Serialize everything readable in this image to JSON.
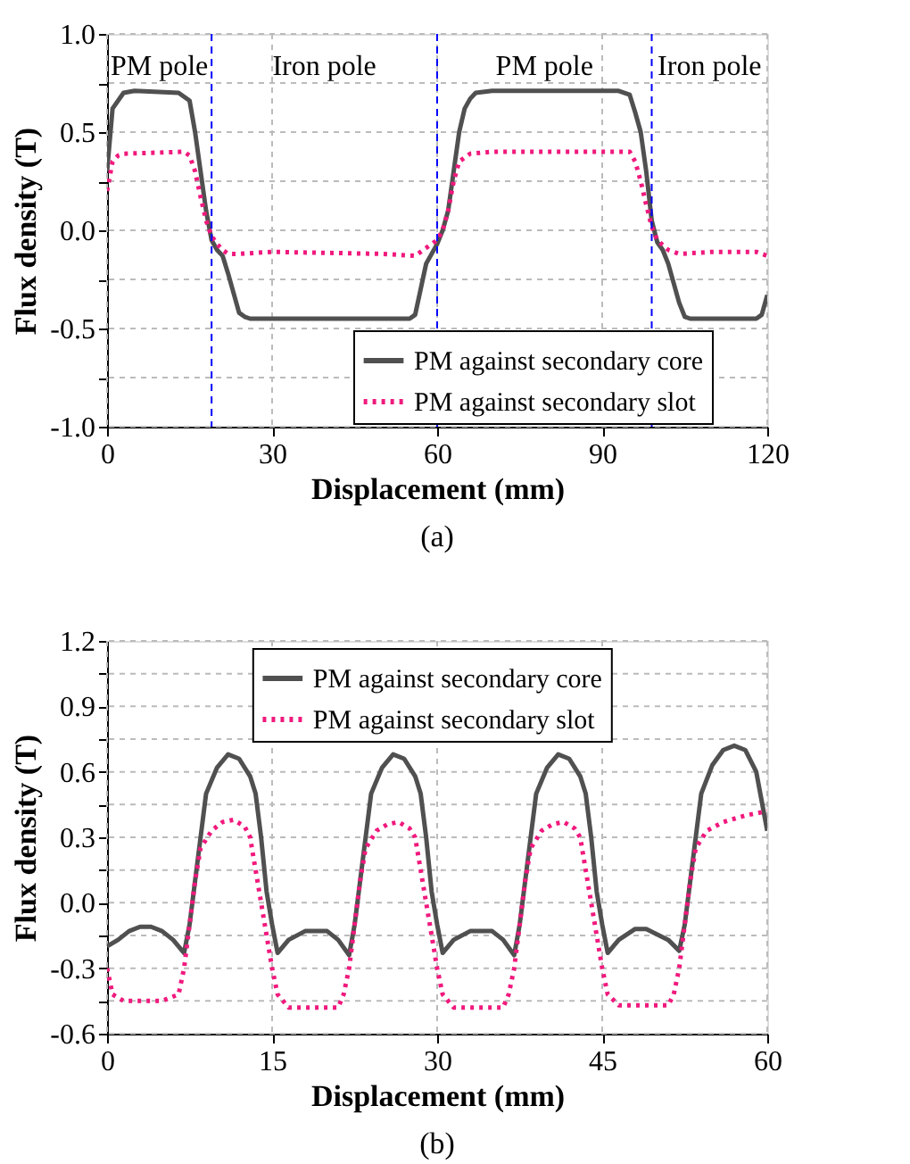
{
  "chart_data": [
    {
      "type": "line",
      "xlabel": "Displacement (mm)",
      "ylabel": "Flux density (T)",
      "xlim": [
        0,
        120
      ],
      "xticks": [
        0,
        30,
        60,
        90,
        120
      ],
      "ylim": [
        -1.0,
        1.0
      ],
      "yticks": [
        {
          "value": -1.0,
          "label": "-1.0"
        },
        {
          "value": -0.75,
          "label": null
        },
        {
          "value": -0.5,
          "label": "-0.5"
        },
        {
          "value": -0.25,
          "label": null
        },
        {
          "value": 0.0,
          "label": "0.0"
        },
        {
          "value": 0.25,
          "label": null
        },
        {
          "value": 0.5,
          "label": "0.5"
        },
        {
          "value": 0.75,
          "label": null
        },
        {
          "value": 1.0,
          "label": "1.0"
        }
      ],
      "grid": true,
      "legend": "bottom right",
      "series": [
        {
          "name": "PM against secondary core",
          "color": "#505050",
          "line_style": "solid",
          "x": [
            0,
            1,
            3,
            5,
            13,
            15,
            16,
            17,
            18,
            19,
            20,
            21,
            22,
            23,
            24,
            25,
            26,
            55,
            56,
            57,
            58,
            59,
            60,
            61,
            62,
            63,
            64,
            65,
            66,
            67,
            70,
            93,
            95,
            96,
            97,
            98,
            99,
            100,
            101,
            102,
            103,
            104,
            105,
            106,
            118,
            119,
            120
          ],
          "values": [
            0.3,
            0.62,
            0.7,
            0.71,
            0.7,
            0.66,
            0.5,
            0.3,
            0.1,
            -0.05,
            -0.1,
            -0.13,
            -0.22,
            -0.32,
            -0.42,
            -0.44,
            -0.45,
            -0.45,
            -0.43,
            -0.3,
            -0.17,
            -0.12,
            -0.07,
            0.0,
            0.1,
            0.3,
            0.5,
            0.62,
            0.67,
            0.7,
            0.71,
            0.71,
            0.69,
            0.6,
            0.5,
            0.3,
            0.05,
            -0.06,
            -0.1,
            -0.17,
            -0.27,
            -0.37,
            -0.44,
            -0.45,
            -0.45,
            -0.43,
            -0.33
          ]
        },
        {
          "name": "PM against secondary slot",
          "color": "#f0197d",
          "line_style": "dotted",
          "x": [
            0,
            1,
            2,
            3,
            14,
            15,
            16,
            17,
            18,
            19,
            20,
            21,
            22,
            24,
            30,
            50,
            56,
            58,
            60,
            61,
            62,
            63,
            64,
            66,
            70,
            95,
            96,
            97,
            98,
            99,
            100,
            102,
            104,
            110,
            118,
            120
          ],
          "values": [
            0.2,
            0.35,
            0.38,
            0.39,
            0.4,
            0.38,
            0.3,
            0.17,
            0.05,
            -0.03,
            -0.07,
            -0.1,
            -0.12,
            -0.12,
            -0.11,
            -0.12,
            -0.13,
            -0.09,
            -0.05,
            0.0,
            0.1,
            0.25,
            0.35,
            0.39,
            0.4,
            0.4,
            0.35,
            0.25,
            0.13,
            0.02,
            -0.05,
            -0.1,
            -0.12,
            -0.11,
            -0.11,
            -0.13
          ]
        }
      ],
      "ref_lines": [
        {
          "axis": "x",
          "value": 19,
          "color": "#0000ff",
          "line_style": "dashed"
        },
        {
          "axis": "x",
          "value": 60,
          "color": "#0000ff",
          "line_style": "dashed"
        },
        {
          "axis": "x",
          "value": 99,
          "color": "#0000ff",
          "line_style": "dashed"
        }
      ],
      "annotations": [
        "PM pole",
        "Iron pole",
        "PM pole",
        "Iron pole",
        "(a)"
      ]
    },
    {
      "type": "line",
      "xlabel": "Displacement (mm)",
      "ylabel": "Flux density (T)",
      "xlim": [
        0,
        60
      ],
      "xticks": [
        0,
        15,
        30,
        45,
        60
      ],
      "ylim": [
        -0.6,
        1.2
      ],
      "yticks": [
        {
          "value": -0.6,
          "label": "-0.6"
        },
        {
          "value": -0.45,
          "label": null
        },
        {
          "value": -0.3,
          "label": "-0.3"
        },
        {
          "value": -0.15,
          "label": null
        },
        {
          "value": 0.0,
          "label": "0.0"
        },
        {
          "value": 0.15,
          "label": null
        },
        {
          "value": 0.3,
          "label": "0.3"
        },
        {
          "value": 0.45,
          "label": null
        },
        {
          "value": 0.6,
          "label": "0.6"
        },
        {
          "value": 0.75,
          "label": null
        },
        {
          "value": 0.9,
          "label": "0.9"
        },
        {
          "value": 1.05,
          "label": null
        },
        {
          "value": 1.2,
          "label": "1.2"
        }
      ],
      "grid": true,
      "legend": "top",
      "series": [
        {
          "name": "PM against secondary core",
          "color": "#505050",
          "line_style": "solid",
          "x": [
            0,
            1,
            2,
            3,
            4,
            5,
            6,
            7,
            7.5,
            8,
            8.5,
            9,
            10,
            11,
            12,
            13,
            13.5,
            14,
            14.5,
            15,
            15.5,
            16.5,
            18,
            19,
            20,
            21,
            22,
            22.5,
            23,
            23.5,
            24,
            25,
            26,
            27,
            28,
            28.5,
            29,
            29.5,
            30,
            30.5,
            31.5,
            33,
            35,
            36,
            37,
            37.5,
            38,
            38.5,
            39,
            40,
            41,
            42,
            43,
            43.5,
            44,
            44.5,
            45,
            45.5,
            46.5,
            48,
            49,
            51,
            52,
            52.5,
            53,
            53.5,
            54,
            55,
            56,
            57,
            58,
            59,
            60
          ],
          "values": [
            -0.2,
            -0.17,
            -0.13,
            -0.11,
            -0.11,
            -0.13,
            -0.17,
            -0.23,
            -0.1,
            0.1,
            0.3,
            0.5,
            0.62,
            0.68,
            0.66,
            0.58,
            0.5,
            0.3,
            0.05,
            -0.1,
            -0.23,
            -0.17,
            -0.13,
            -0.13,
            -0.13,
            -0.17,
            -0.24,
            -0.1,
            0.1,
            0.3,
            0.5,
            0.62,
            0.68,
            0.66,
            0.58,
            0.5,
            0.3,
            0.05,
            -0.1,
            -0.23,
            -0.17,
            -0.13,
            -0.13,
            -0.17,
            -0.24,
            -0.1,
            0.1,
            0.3,
            0.5,
            0.62,
            0.68,
            0.66,
            0.58,
            0.5,
            0.3,
            0.05,
            -0.1,
            -0.23,
            -0.17,
            -0.12,
            -0.12,
            -0.17,
            -0.22,
            -0.1,
            0.1,
            0.3,
            0.5,
            0.63,
            0.7,
            0.72,
            0.7,
            0.6,
            0.33
          ]
        },
        {
          "name": "PM against secondary slot",
          "color": "#f0197d",
          "line_style": "dotted",
          "x": [
            0,
            0.5,
            1.5,
            5,
            6.5,
            7,
            7.5,
            8,
            8.5,
            9.5,
            10.5,
            11.5,
            12.5,
            13,
            13.5,
            14,
            14.5,
            15,
            15.5,
            16.5,
            21,
            21.5,
            22,
            22.5,
            23,
            23.5,
            24.5,
            25.5,
            26.5,
            27.5,
            28,
            28.5,
            29,
            29.5,
            30,
            30.5,
            31.5,
            36,
            36.5,
            37,
            37.5,
            38,
            38.5,
            39.5,
            40.5,
            41.5,
            42.5,
            43,
            43.5,
            44,
            44.5,
            45,
            45.5,
            46.5,
            51,
            51.5,
            52,
            52.5,
            53,
            53.5,
            54.5,
            56,
            58,
            60
          ],
          "values": [
            -0.3,
            -0.42,
            -0.45,
            -0.45,
            -0.42,
            -0.3,
            -0.1,
            0.1,
            0.25,
            0.33,
            0.37,
            0.38,
            0.35,
            0.3,
            0.15,
            0.0,
            -0.15,
            -0.3,
            -0.42,
            -0.48,
            -0.48,
            -0.42,
            -0.3,
            -0.1,
            0.1,
            0.25,
            0.33,
            0.36,
            0.37,
            0.34,
            0.3,
            0.15,
            0.0,
            -0.15,
            -0.3,
            -0.42,
            -0.48,
            -0.48,
            -0.42,
            -0.3,
            -0.1,
            0.1,
            0.25,
            0.33,
            0.36,
            0.37,
            0.34,
            0.3,
            0.15,
            0.0,
            -0.15,
            -0.3,
            -0.42,
            -0.47,
            -0.47,
            -0.42,
            -0.3,
            -0.1,
            0.1,
            0.25,
            0.33,
            0.37,
            0.4,
            0.42
          ]
        }
      ],
      "annotations": [
        "(b)"
      ]
    }
  ]
}
